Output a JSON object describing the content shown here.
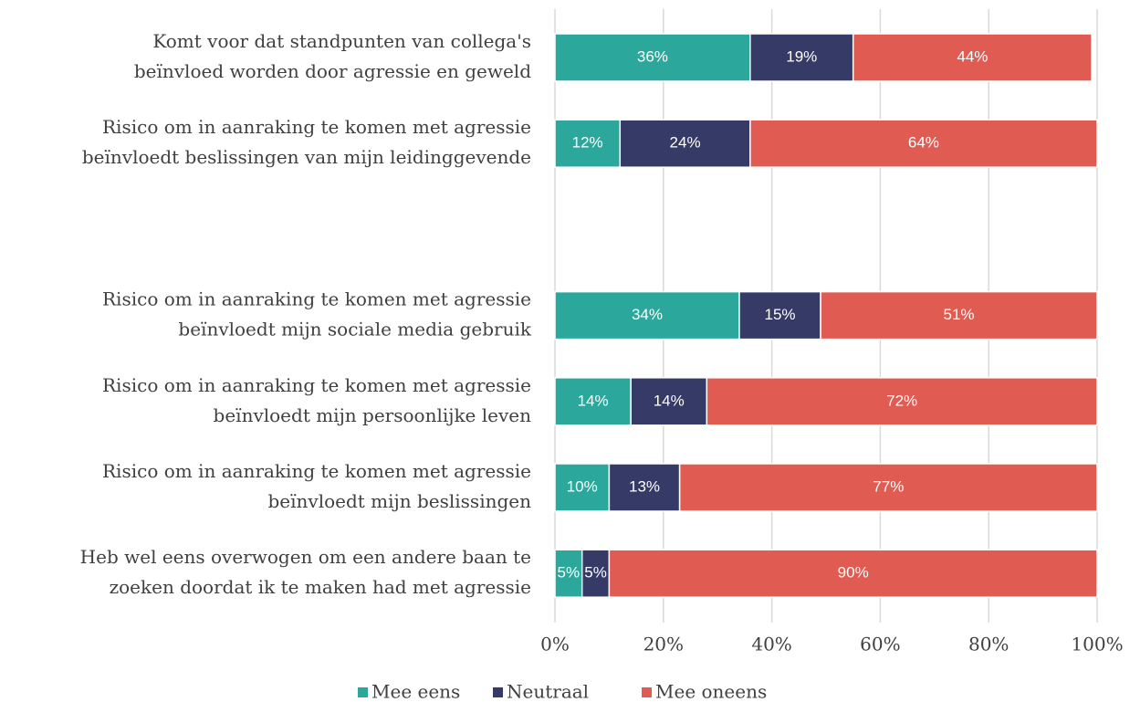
{
  "chart_data": {
    "type": "stacked_barh",
    "categories": [
      [
        "Komt voor dat standpunten van collega's",
        "beïnvloed worden door agressie en geweld"
      ],
      [
        "Risico om in aanraking te komen met agressie",
        "beïnvloedt beslissingen van mijn leidinggevende"
      ],
      null,
      [
        "Risico om in aanraking te komen met agressie",
        "beïnvloedt mijn sociale media gebruik"
      ],
      [
        "Risico om in aanraking te komen met agressie",
        "beïnvloedt mijn persoonlijke leven"
      ],
      [
        "Risico om in aanraking te komen met agressie",
        "beïnvloedt mijn beslissingen"
      ],
      [
        "Heb wel eens overwogen om een andere baan te",
        "zoeken doordat ik te maken had met agressie"
      ]
    ],
    "series": [
      {
        "name": "Mee eens",
        "color": "#2ba89b",
        "values": [
          36,
          12,
          null,
          34,
          14,
          10,
          5
        ],
        "value_labels": [
          "36%",
          "12%",
          null,
          "34%",
          "14%",
          "10%",
          "5%"
        ]
      },
      {
        "name": "Neutraal",
        "color": "#363a67",
        "values": [
          19,
          24,
          null,
          15,
          14,
          13,
          5
        ],
        "value_labels": [
          "19%",
          "24%",
          null,
          "15%",
          "14%",
          "13%",
          "5%"
        ]
      },
      {
        "name": "Mee oneens",
        "color": "#e05b51",
        "values": [
          44,
          64,
          null,
          51,
          72,
          77,
          90
        ],
        "value_labels": [
          "44%",
          "64%",
          null,
          "51%",
          "72%",
          "77%",
          "90%"
        ]
      }
    ],
    "xlim": [
      0,
      100
    ],
    "xticks": [
      {
        "value": 0,
        "label": "0%"
      },
      {
        "value": 20,
        "label": "20%"
      },
      {
        "value": 40,
        "label": "40%"
      },
      {
        "value": 60,
        "label": "60%"
      },
      {
        "value": 80,
        "label": "80%"
      },
      {
        "value": 100,
        "label": "100%"
      }
    ],
    "grid": true,
    "legend": "bottom"
  }
}
